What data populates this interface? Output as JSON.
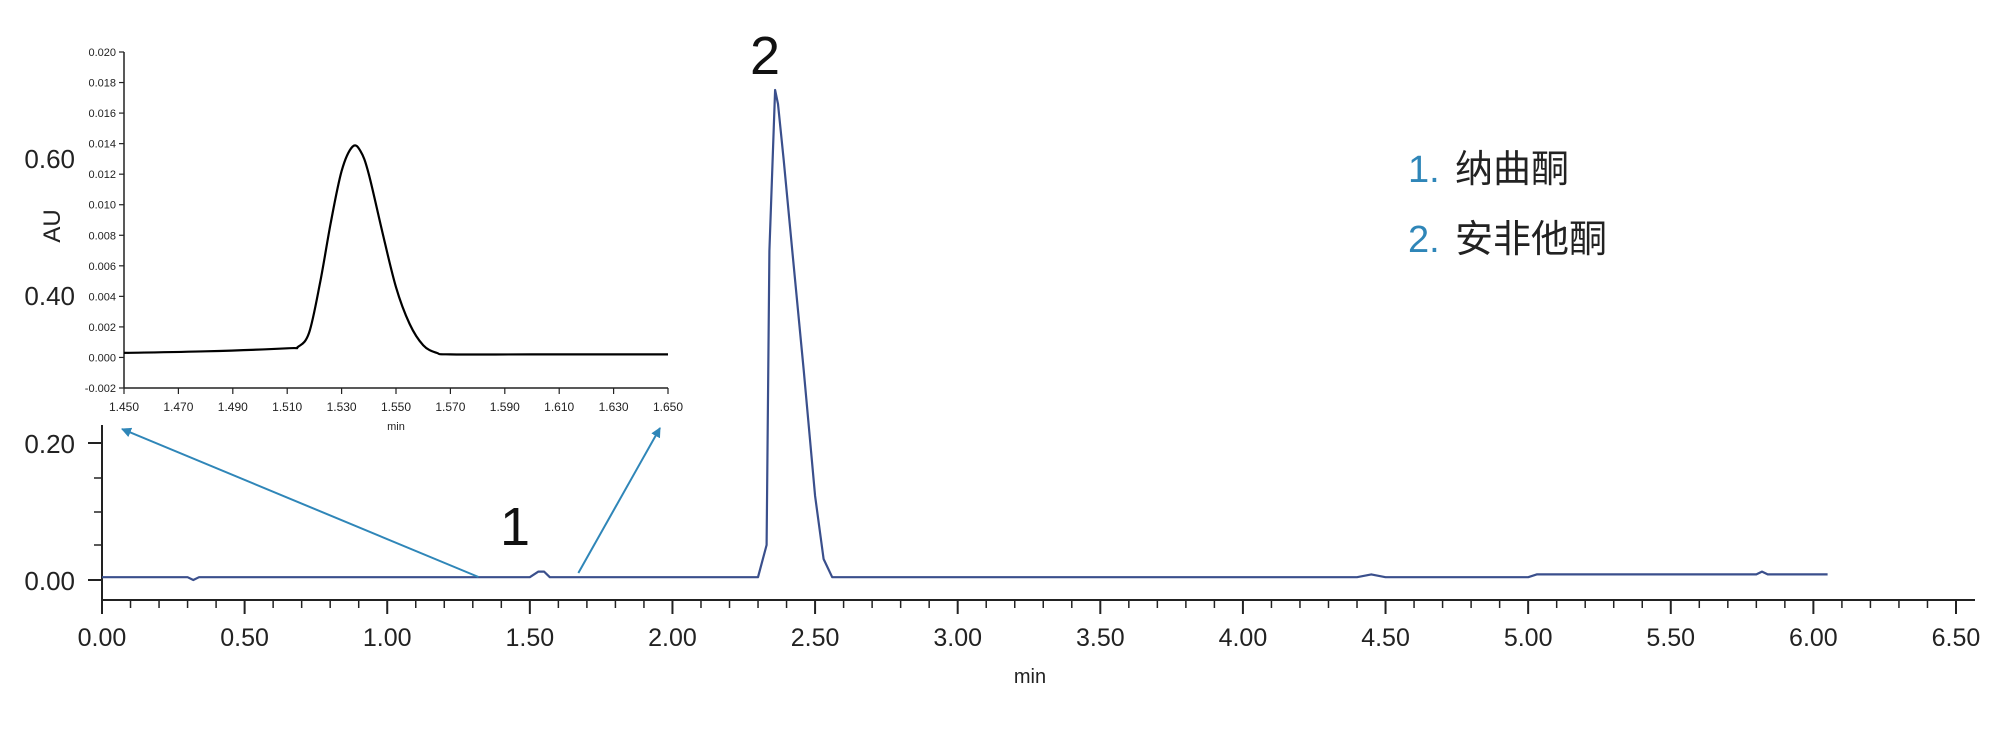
{
  "chart_data": [
    {
      "type": "line",
      "role": "main",
      "xlabel": "min",
      "ylabel": "AU",
      "xlim": [
        0.0,
        6.8
      ],
      "ylim": [
        0.0,
        0.7
      ],
      "x_ticks": [
        "0.00",
        "0.50",
        "1.00",
        "1.50",
        "2.00",
        "2.50",
        "3.00",
        "3.50",
        "4.00",
        "4.50",
        "5.00",
        "5.50",
        "6.00",
        "6.50"
      ],
      "y_ticks": [
        "0.00",
        "0.20",
        "0.40",
        "0.60"
      ],
      "grid": false,
      "series": [
        {
          "color": "#3a4f8c",
          "x": [
            0.0,
            0.3,
            0.32,
            0.34,
            1.5,
            1.53,
            1.55,
            1.57,
            1.6,
            2.3,
            2.33,
            2.34,
            2.36,
            2.37,
            2.39,
            2.42,
            2.46,
            2.5,
            2.53,
            2.56,
            2.6,
            4.4,
            4.45,
            4.5,
            5.0,
            5.03,
            5.8,
            5.82,
            5.84,
            6.05
          ],
          "y": [
            0.004,
            0.004,
            0.0,
            0.004,
            0.004,
            0.012,
            0.012,
            0.004,
            0.004,
            0.004,
            0.05,
            0.47,
            0.7,
            0.68,
            0.6,
            0.47,
            0.3,
            0.12,
            0.03,
            0.004,
            0.004,
            0.004,
            0.008,
            0.004,
            0.004,
            0.008,
            0.008,
            0.012,
            0.008,
            0.008
          ]
        }
      ],
      "annotations": [
        {
          "text": "1",
          "x": 1.53,
          "y": 0.07
        },
        {
          "text": "2",
          "x": 2.37,
          "y": 0.77
        }
      ],
      "legend": {
        "placement": "top-right",
        "entries": [
          {
            "num": "1.",
            "name": "纳曲酮"
          },
          {
            "num": "2.",
            "name": "安非他酮"
          }
        ]
      },
      "colors": {
        "trace": "#3a4f8c",
        "arrow": "#2f86b8",
        "legend_number": "#2f86b8"
      }
    },
    {
      "type": "line",
      "role": "inset",
      "xlabel": "min",
      "ylabel": "",
      "xlim": [
        1.45,
        1.65
      ],
      "ylim": [
        -0.002,
        0.02
      ],
      "x_ticks": [
        "1.450",
        "1.470",
        "1.490",
        "1.510",
        "1.530",
        "1.550",
        "1.570",
        "1.590",
        "1.610",
        "1.630",
        "1.650"
      ],
      "y_ticks": [
        "-0.002",
        "0.000",
        "0.002",
        "0.004",
        "0.006",
        "0.008",
        "0.010",
        "0.012",
        "0.014",
        "0.016",
        "0.018",
        "0.020"
      ],
      "grid": false,
      "series": [
        {
          "color": "#000000",
          "x": [
            1.45,
            1.48,
            1.51,
            1.514,
            1.518,
            1.522,
            1.526,
            1.53,
            1.534,
            1.537,
            1.54,
            1.545,
            1.55,
            1.555,
            1.56,
            1.565,
            1.57,
            1.6,
            1.65
          ],
          "y": [
            0.0003,
            0.0004,
            0.0006,
            0.0007,
            0.0016,
            0.0048,
            0.0088,
            0.0122,
            0.0138,
            0.0135,
            0.012,
            0.0082,
            0.0046,
            0.0022,
            0.0008,
            0.0003,
            0.0002,
            0.0002,
            0.0002
          ]
        }
      ],
      "zoom_range_on_main": [
        1.3,
        1.65
      ]
    }
  ]
}
